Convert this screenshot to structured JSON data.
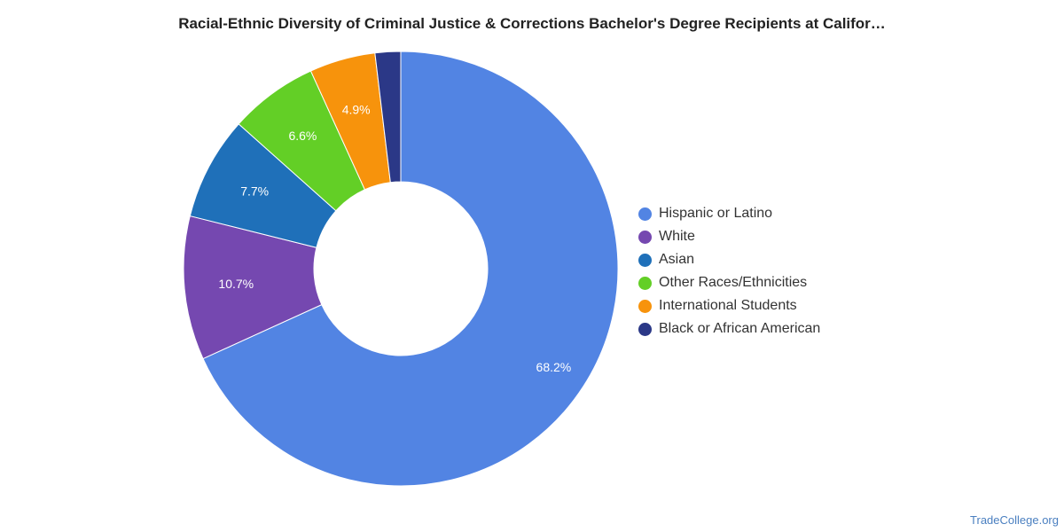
{
  "chart_data": {
    "type": "pie",
    "title": "Racial-Ethnic Diversity of Criminal Justice & Corrections Bachelor's Degree Recipients at Califor…",
    "donut": true,
    "categories": [
      "Hispanic or Latino",
      "White",
      "Asian",
      "Other Races/Ethnicities",
      "International Students",
      "Black or African American"
    ],
    "values": [
      68.2,
      10.7,
      7.7,
      6.6,
      4.9,
      1.9
    ],
    "data_labels": [
      "68.2%",
      "10.7%",
      "7.7%",
      "6.6%",
      "4.9%",
      ""
    ],
    "colors": [
      "#5284e3",
      "#7548b0",
      "#1f70b9",
      "#63cf26",
      "#f7930c",
      "#2b3887"
    ],
    "legend_position": "right"
  },
  "footer": {
    "source": "TradeCollege.org"
  }
}
